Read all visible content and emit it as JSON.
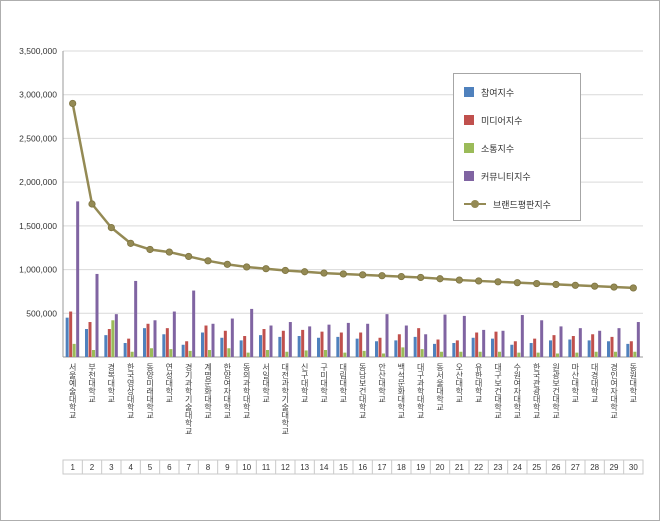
{
  "chart_data": {
    "type": "bar",
    "subtype": "grouped-bars-with-line-overlay",
    "title": "",
    "xlabel": "",
    "ylabel": "",
    "ylim": [
      0,
      3500000
    ],
    "ytick_step": 500000,
    "ytick_labels": [
      "500,000",
      "1,000,000",
      "1,500,000",
      "2,000,000",
      "2,500,000",
      "3,000,000",
      "3,500,000"
    ],
    "grid": true,
    "legend_position": "top-right",
    "categories": [
      "서울예술대학교",
      "부천대학교",
      "경복대학교",
      "한국영상대학교",
      "동양미래대학교",
      "연성대학교",
      "경기과학기술대학교",
      "계명문화대학교",
      "한양여자대학교",
      "동의과학대학교",
      "서일대학교",
      "대전과학기술대학교",
      "신구대학교",
      "구미대학교",
      "대림대학교",
      "동남보건대학교",
      "안산대학교",
      "백석문화대학교",
      "대구과학대학교",
      "동서울대학교",
      "오산대학교",
      "유한대학교",
      "대구보건대학교",
      "수원여자대학교",
      "한국관광대학교",
      "원광보건대학교",
      "마산대학교",
      "대경대학교",
      "경인여자대학교",
      "동원대학교"
    ],
    "xtick_labels": [
      "1",
      "2",
      "3",
      "4",
      "5",
      "6",
      "7",
      "8",
      "9",
      "10",
      "11",
      "12",
      "13",
      "14",
      "15",
      "16",
      "17",
      "18",
      "19",
      "20",
      "21",
      "22",
      "23",
      "24",
      "25",
      "26",
      "27",
      "28",
      "29",
      "30"
    ],
    "series": [
      {
        "name": "참여지수",
        "type": "bar",
        "color": "#4F81BD",
        "values": [
          450000,
          320000,
          250000,
          160000,
          330000,
          260000,
          140000,
          280000,
          220000,
          190000,
          250000,
          230000,
          240000,
          220000,
          230000,
          210000,
          180000,
          190000,
          230000,
          150000,
          160000,
          220000,
          210000,
          140000,
          160000,
          190000,
          200000,
          190000,
          180000,
          150000
        ]
      },
      {
        "name": "미디어지수",
        "type": "bar",
        "color": "#C0504D",
        "values": [
          520000,
          400000,
          320000,
          210000,
          380000,
          330000,
          180000,
          360000,
          300000,
          240000,
          320000,
          300000,
          310000,
          290000,
          280000,
          280000,
          220000,
          260000,
          330000,
          200000,
          190000,
          280000,
          290000,
          180000,
          210000,
          250000,
          240000,
          260000,
          230000,
          180000
        ]
      },
      {
        "name": "소통지수",
        "type": "bar",
        "color": "#9BBB59",
        "values": [
          150000,
          80000,
          420000,
          60000,
          100000,
          90000,
          70000,
          80000,
          100000,
          50000,
          80000,
          60000,
          75000,
          80000,
          50000,
          70000,
          40000,
          110000,
          90000,
          60000,
          60000,
          60000,
          60000,
          50000,
          50000,
          40000,
          50000,
          60000,
          60000,
          60000
        ]
      },
      {
        "name": "커뮤니티지수",
        "type": "bar",
        "color": "#8064A2",
        "values": [
          1780000,
          950000,
          490000,
          870000,
          420000,
          520000,
          760000,
          380000,
          440000,
          550000,
          360000,
          400000,
          350000,
          370000,
          390000,
          380000,
          490000,
          360000,
          260000,
          485000,
          470000,
          310000,
          300000,
          480000,
          420000,
          350000,
          330000,
          300000,
          330000,
          400000
        ]
      },
      {
        "name": "브랜드평판지수",
        "type": "line",
        "color": "#948A54",
        "values": [
          2900000,
          1750000,
          1480000,
          1300000,
          1230000,
          1200000,
          1150000,
          1100000,
          1060000,
          1030000,
          1010000,
          990000,
          975000,
          960000,
          950000,
          940000,
          930000,
          920000,
          910000,
          895000,
          880000,
          870000,
          860000,
          850000,
          840000,
          830000,
          820000,
          810000,
          800000,
          790000
        ]
      }
    ]
  }
}
